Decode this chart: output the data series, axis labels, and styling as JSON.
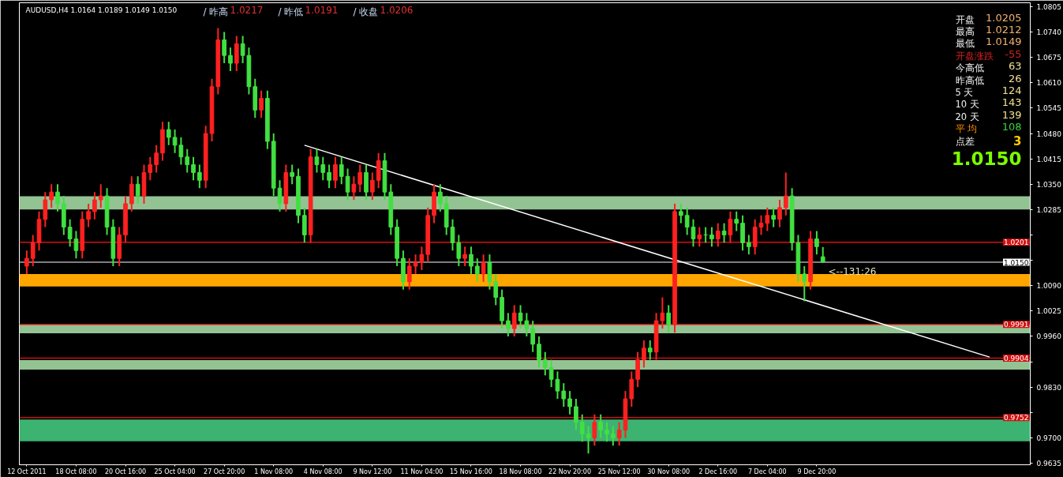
{
  "chart_data": {
    "type": "candlestick",
    "title": "AUDUSD,H4  1.0164 1.0189 1.0149 1.0150",
    "categories": [
      "12 Oct 2011",
      null,
      null,
      null,
      null,
      null,
      null,
      null,
      "18 Oct 08:00",
      null,
      null,
      null,
      null,
      null,
      null,
      null,
      "20 Oct 16:00",
      null,
      null,
      null,
      null,
      null,
      null,
      null,
      "25 Oct 04:00",
      null,
      null,
      null,
      null,
      null,
      null,
      null,
      "27 Oct 20:00",
      null,
      null,
      null,
      null,
      null,
      null,
      null,
      "1 Nov 08:00",
      null,
      null,
      null,
      null,
      null,
      null,
      null,
      "4 Nov 08:00",
      null,
      null,
      null,
      null,
      null,
      null,
      null,
      "9 Nov 12:00",
      null,
      null,
      null,
      null,
      null,
      null,
      null,
      "11 Nov 04:00",
      null,
      null,
      null,
      null,
      null,
      null,
      null,
      "15 Nov 16:00",
      null,
      null,
      null,
      null,
      null,
      null,
      null,
      "18 Nov 08:00",
      null,
      null,
      null,
      null,
      null,
      null,
      null,
      "22 Nov 20:00",
      null,
      null,
      null,
      null,
      null,
      null,
      null,
      "25 Nov 12:00",
      null,
      null,
      null,
      null,
      null,
      null,
      null,
      "30 Nov 08:00",
      null,
      null,
      null,
      null,
      null,
      null,
      null,
      "2 Dec 16:00",
      null,
      null,
      null,
      null,
      null,
      null,
      null,
      "7 Dec 04:00",
      null,
      null,
      null,
      null,
      null,
      null,
      null,
      "9 Dec 20:00",
      null,
      null,
      null,
      null,
      null,
      null,
      null,
      null,
      null,
      null,
      null,
      null,
      null,
      null,
      null,
      null,
      null,
      null,
      null,
      null,
      null,
      null,
      null,
      null,
      null,
      null,
      null,
      null,
      null,
      null,
      null,
      null,
      null,
      null
    ],
    "ohlc": [
      [
        1.014,
        1.018,
        1.012,
        1.016
      ],
      [
        1.016,
        1.022,
        1.014,
        1.02
      ],
      [
        1.02,
        1.028,
        1.018,
        1.026
      ],
      [
        1.026,
        1.033,
        1.024,
        1.031
      ],
      [
        1.031,
        1.035,
        1.029,
        1.033
      ],
      [
        1.033,
        1.035,
        1.028,
        1.03
      ],
      [
        1.03,
        1.032,
        1.022,
        1.024
      ],
      [
        1.024,
        1.026,
        1.019,
        1.021
      ],
      [
        1.021,
        1.023,
        1.016,
        1.018
      ],
      [
        1.018,
        1.028,
        1.016,
        1.026
      ],
      [
        1.026,
        1.03,
        1.024,
        1.028
      ],
      [
        1.028,
        1.033,
        1.026,
        1.031
      ],
      [
        1.031,
        1.035,
        1.029,
        1.032
      ],
      [
        1.032,
        1.034,
        1.022,
        1.024
      ],
      [
        1.024,
        1.026,
        1.014,
        1.016
      ],
      [
        1.016,
        1.024,
        1.014,
        1.022
      ],
      [
        1.022,
        1.032,
        1.02,
        1.03
      ],
      [
        1.03,
        1.037,
        1.028,
        1.035
      ],
      [
        1.035,
        1.037,
        1.03,
        1.032
      ],
      [
        1.032,
        1.04,
        1.03,
        1.038
      ],
      [
        1.038,
        1.042,
        1.036,
        1.04
      ],
      [
        1.04,
        1.045,
        1.038,
        1.043
      ],
      [
        1.043,
        1.051,
        1.041,
        1.049
      ],
      [
        1.049,
        1.051,
        1.045,
        1.047
      ],
      [
        1.047,
        1.049,
        1.043,
        1.045
      ],
      [
        1.045,
        1.047,
        1.04,
        1.042
      ],
      [
        1.042,
        1.044,
        1.038,
        1.04
      ],
      [
        1.04,
        1.042,
        1.036,
        1.038
      ],
      [
        1.038,
        1.04,
        1.034,
        1.036
      ],
      [
        1.036,
        1.05,
        1.034,
        1.048
      ],
      [
        1.048,
        1.062,
        1.046,
        1.06
      ],
      [
        1.06,
        1.075,
        1.058,
        1.072
      ],
      [
        1.072,
        1.074,
        1.066,
        1.068
      ],
      [
        1.068,
        1.07,
        1.064,
        1.066
      ],
      [
        1.066,
        1.073,
        1.064,
        1.071
      ],
      [
        1.071,
        1.073,
        1.066,
        1.068
      ],
      [
        1.068,
        1.07,
        1.058,
        1.06
      ],
      [
        1.06,
        1.062,
        1.052,
        1.054
      ],
      [
        1.054,
        1.059,
        1.052,
        1.057
      ],
      [
        1.057,
        1.059,
        1.044,
        1.046
      ],
      [
        1.046,
        1.048,
        1.032,
        1.034
      ],
      [
        1.034,
        1.036,
        1.028,
        1.03
      ],
      [
        1.03,
        1.04,
        1.028,
        1.038
      ],
      [
        1.038,
        1.04,
        1.035,
        1.037
      ],
      [
        1.037,
        1.039,
        1.025,
        1.027
      ],
      [
        1.027,
        1.029,
        1.02,
        1.022
      ],
      [
        1.022,
        1.044,
        1.02,
        1.042
      ],
      [
        1.042,
        1.044,
        1.038,
        1.04
      ],
      [
        1.04,
        1.042,
        1.036,
        1.038
      ],
      [
        1.038,
        1.04,
        1.034,
        1.036
      ],
      [
        1.036,
        1.042,
        1.034,
        1.04
      ],
      [
        1.04,
        1.042,
        1.035,
        1.037
      ],
      [
        1.037,
        1.039,
        1.031,
        1.033
      ],
      [
        1.033,
        1.037,
        1.031,
        1.035
      ],
      [
        1.035,
        1.04,
        1.033,
        1.038
      ],
      [
        1.038,
        1.04,
        1.031,
        1.033
      ],
      [
        1.033,
        1.038,
        1.031,
        1.036
      ],
      [
        1.036,
        1.043,
        1.034,
        1.041
      ],
      [
        1.041,
        1.043,
        1.031,
        1.033
      ],
      [
        1.033,
        1.035,
        1.022,
        1.024
      ],
      [
        1.024,
        1.026,
        1.014,
        1.016
      ],
      [
        1.016,
        1.018,
        1.008,
        1.01
      ],
      [
        1.01,
        1.016,
        1.008,
        1.014
      ],
      [
        1.014,
        1.017,
        1.012,
        1.015
      ],
      [
        1.015,
        1.019,
        1.013,
        1.017
      ],
      [
        1.017,
        1.029,
        1.015,
        1.027
      ],
      [
        1.027,
        1.035,
        1.025,
        1.033
      ],
      [
        1.033,
        1.035,
        1.028,
        1.03
      ],
      [
        1.03,
        1.032,
        1.022,
        1.024
      ],
      [
        1.024,
        1.026,
        1.018,
        1.02
      ],
      [
        1.02,
        1.022,
        1.014,
        1.016
      ],
      [
        1.016,
        1.019,
        1.014,
        1.017
      ],
      [
        1.017,
        1.019,
        1.012,
        1.014
      ],
      [
        1.014,
        1.016,
        1.01,
        1.012
      ],
      [
        1.012,
        1.017,
        1.01,
        1.015
      ],
      [
        1.015,
        1.017,
        1.008,
        1.01
      ],
      [
        1.01,
        1.012,
        1.004,
        1.006
      ],
      [
        1.006,
        1.008,
        0.998,
        1.0
      ],
      [
        1.0,
        1.002,
        0.996,
        0.998
      ],
      [
        0.998,
        1.004,
        0.996,
        1.002
      ],
      [
        1.002,
        1.004,
        0.998,
        1.0
      ],
      [
        1.0,
        1.002,
        0.996,
        0.998
      ],
      [
        0.998,
        1.0,
        0.992,
        0.994
      ],
      [
        0.994,
        0.996,
        0.988,
        0.99
      ],
      [
        0.99,
        0.992,
        0.986,
        0.988
      ],
      [
        0.988,
        0.99,
        0.983,
        0.985
      ],
      [
        0.985,
        0.987,
        0.98,
        0.982
      ],
      [
        0.982,
        0.984,
        0.978,
        0.98
      ],
      [
        0.98,
        0.982,
        0.976,
        0.978
      ],
      [
        0.978,
        0.98,
        0.972,
        0.974
      ],
      [
        0.974,
        0.976,
        0.969,
        0.971
      ],
      [
        0.971,
        0.973,
        0.966,
        0.97
      ],
      [
        0.97,
        0.976,
        0.968,
        0.974
      ],
      [
        0.974,
        0.976,
        0.97,
        0.972
      ],
      [
        0.972,
        0.974,
        0.969,
        0.971
      ],
      [
        0.971,
        0.973,
        0.968,
        0.97
      ],
      [
        0.97,
        0.974,
        0.968,
        0.972
      ],
      [
        0.972,
        0.982,
        0.97,
        0.98
      ],
      [
        0.98,
        0.987,
        0.978,
        0.985
      ],
      [
        0.985,
        0.992,
        0.983,
        0.99
      ],
      [
        0.99,
        0.995,
        0.988,
        0.993
      ],
      [
        0.993,
        0.995,
        0.99,
        0.992
      ],
      [
        0.992,
        1.002,
        0.99,
        1.0
      ],
      [
        1.0,
        1.006,
        0.998,
        1.002
      ],
      [
        1.002,
        1.004,
        0.997,
        0.999
      ],
      [
        0.999,
        1.03,
        0.997,
        1.028
      ],
      [
        1.028,
        1.03,
        1.025,
        1.027
      ],
      [
        1.027,
        1.029,
        1.022,
        1.024
      ],
      [
        1.024,
        1.026,
        1.019,
        1.021
      ],
      [
        1.021,
        1.024,
        1.019,
        1.022
      ],
      [
        1.022,
        1.024,
        1.02,
        1.022
      ],
      [
        1.022,
        1.024,
        1.019,
        1.021
      ],
      [
        1.021,
        1.025,
        1.019,
        1.023
      ],
      [
        1.023,
        1.025,
        1.02,
        1.022
      ],
      [
        1.022,
        1.028,
        1.02,
        1.026
      ],
      [
        1.026,
        1.028,
        1.023,
        1.025
      ],
      [
        1.025,
        1.027,
        1.018,
        1.02
      ],
      [
        1.02,
        1.022,
        1.017,
        1.019
      ],
      [
        1.019,
        1.026,
        1.017,
        1.024
      ],
      [
        1.024,
        1.027,
        1.022,
        1.025
      ],
      [
        1.025,
        1.029,
        1.023,
        1.027
      ],
      [
        1.027,
        1.029,
        1.024,
        1.026
      ],
      [
        1.026,
        1.031,
        1.024,
        1.029
      ],
      [
        1.029,
        1.038,
        1.027,
        1.032
      ],
      [
        1.032,
        1.034,
        1.018,
        1.02
      ],
      [
        1.02,
        1.022,
        1.01,
        1.012
      ],
      [
        1.012,
        1.014,
        1.005,
        1.01
      ],
      [
        1.01,
        1.023,
        1.008,
        1.021
      ],
      [
        1.021,
        1.023,
        1.017,
        1.019
      ],
      [
        1.0164,
        1.0189,
        1.0149,
        1.015
      ],
      null,
      null,
      null,
      null,
      null,
      null,
      null,
      null,
      null,
      null,
      null,
      null,
      null,
      null,
      null,
      null,
      null,
      null,
      null,
      null,
      null,
      null,
      null,
      null,
      null,
      null,
      null,
      null,
      null,
      null,
      null,
      null,
      null
    ],
    "colors": [
      "#ff2020",
      "#ff2020",
      "#ff2020",
      "#ff2020",
      "#ff2020",
      "#40e040",
      "#40e040",
      "#40e040",
      "#40e040",
      "#ff2020",
      "#ff2020",
      "#ff2020",
      "#ff2020",
      "#40e040",
      "#40e040",
      "#ff2020",
      "#ff2020",
      "#ff2020",
      "#40e040",
      "#ff2020",
      "#ff2020",
      "#ff2020",
      "#ff2020",
      "#40e040",
      "#40e040",
      "#40e040",
      "#40e040",
      "#40e040",
      "#40e040",
      "#ff2020",
      "#ff2020",
      "#ff2020",
      "#40e040",
      "#40e040",
      "#ff2020",
      "#40e040",
      "#40e040",
      "#40e040",
      "#ff2020",
      "#40e040",
      "#40e040",
      "#40e040",
      "#ff2020",
      "#40e040",
      "#40e040",
      "#40e040",
      "#ff2020",
      "#40e040",
      "#40e040",
      "#40e040",
      "#ff2020",
      "#40e040",
      "#40e040",
      "#ff2020",
      "#ff2020",
      "#40e040",
      "#ff2020",
      "#ff2020",
      "#40e040",
      "#40e040",
      "#40e040",
      "#40e040",
      "#ff2020",
      "#ff2020",
      "#ff2020",
      "#ff2020",
      "#ff2020",
      "#40e040",
      "#40e040",
      "#40e040",
      "#40e040",
      "#ff2020",
      "#40e040",
      "#40e040",
      "#ff2020",
      "#40e040",
      "#40e040",
      "#40e040",
      "#40e040",
      "#ff2020",
      "#40e040",
      "#40e040",
      "#40e040",
      "#40e040",
      "#40e040",
      "#40e040",
      "#40e040",
      "#40e040",
      "#40e040",
      "#40e040",
      "#40e040",
      "#40e040",
      "#ff2020",
      "#40e040",
      "#40e040",
      "#40e040",
      "#ff2020",
      "#ff2020",
      "#ff2020",
      "#ff2020",
      "#ff2020",
      "#40e040",
      "#ff2020",
      "#ff2020",
      "#40e040",
      "#ff2020",
      "#40e040",
      "#40e040",
      "#40e040",
      "#ff2020",
      "#40e040",
      "#40e040",
      "#ff2020",
      "#40e040",
      "#ff2020",
      "#40e040",
      "#40e040",
      "#40e040",
      "#ff2020",
      "#ff2020",
      "#ff2020",
      "#40e040",
      "#ff2020",
      "#ff2020",
      "#40e040",
      "#40e040",
      "#40e040",
      "#ff2020",
      "#40e040",
      "#40e040",
      null,
      null,
      null,
      null,
      null,
      null,
      null,
      null,
      null,
      null,
      null,
      null,
      null,
      null,
      null,
      null,
      null,
      null,
      null,
      null,
      null,
      null,
      null,
      null,
      null,
      null,
      null,
      null,
      null,
      null,
      null,
      null,
      null
    ],
    "series": [
      {
        "type": "line",
        "color": "#ffffff",
        "values": [
          null,
          null,
          null,
          null,
          null,
          null,
          null,
          null,
          null,
          null,
          null,
          null,
          null,
          null,
          null,
          null,
          null,
          null,
          null,
          null,
          null,
          null,
          null,
          null,
          null,
          null,
          null,
          null,
          null,
          null,
          null,
          null,
          null,
          null,
          null,
          null,
          null,
          null,
          null,
          null,
          null,
          null,
          null,
          null,
          null,
          1.045,
          null,
          null,
          null,
          null,
          null,
          null,
          null,
          null,
          null,
          null,
          null,
          null,
          null,
          null,
          null,
          null,
          null,
          null,
          null,
          null,
          null,
          null,
          null,
          null,
          null,
          null,
          null,
          null,
          null,
          null,
          null,
          null,
          null,
          null,
          null,
          null,
          null,
          null,
          null,
          null,
          null,
          null,
          null,
          null,
          null,
          null,
          null,
          null,
          null,
          null,
          null,
          null,
          null,
          null,
          null,
          null,
          null,
          null,
          null,
          null,
          null,
          null,
          null,
          null,
          null,
          null,
          null,
          null,
          null,
          null,
          null,
          null,
          null,
          null,
          null,
          null,
          null,
          null,
          null,
          null,
          null,
          null,
          null,
          null,
          null,
          null,
          null,
          null,
          null,
          null,
          null,
          null,
          null,
          null,
          null,
          null,
          null,
          null,
          null,
          null,
          null,
          null,
          null,
          null,
          null,
          null,
          null,
          null,
          null,
          null,
          0.9907,
          null,
          null,
          null,
          null,
          null,
          null
        ]
      }
    ],
    "ylim": [
      0.9631,
      1.0815
    ],
    "yticks": [
      1.0805,
      {
        "value": 1.074,
        "label": "1.0740"
      },
      1.0675,
      {
        "value": 1.061,
        "label": "1.0610"
      },
      1.0545,
      {
        "value": 1.048,
        "label": "1.0480"
      },
      1.0415,
      {
        "value": 1.035,
        "label": "1.0350"
      },
      1.0285,
      {
        "value": 1.022,
        "label": null
      },
      {
        "value": 1.0155,
        "label": null
      },
      {
        "value": 1.009,
        "label": "1.0090"
      },
      1.0025,
      {
        "value": 0.996,
        "label": "0.9960"
      },
      {
        "value": 0.9895,
        "label": null
      },
      {
        "value": 0.983,
        "label": "0.9830"
      },
      {
        "value": 0.9765,
        "label": null
      },
      {
        "value": 0.97,
        "label": "0.9700"
      },
      0.9635
    ],
    "ref_lines": [
      {
        "axis": "y",
        "value": 1.0201,
        "label": "1.0201",
        "color": "#d01010"
      },
      {
        "axis": "y",
        "value": 1.015,
        "label": "1.0150",
        "color": "#a8a8b0"
      },
      {
        "axis": "y",
        "value": 0.9991,
        "label": "0.9991",
        "color": "#d01010"
      },
      {
        "axis": "y",
        "value": 0.9904,
        "label": "0.9904",
        "color": "#d01010"
      },
      {
        "axis": "y",
        "value": 0.9752,
        "label": "0.9752",
        "color": "#d01010"
      }
    ],
    "bands": [
      {
        "axis": "y",
        "from": 1.0285,
        "to": 1.0319,
        "color": "#93c393"
      },
      {
        "axis": "y",
        "from": 1.0088,
        "to": 1.012,
        "color": "#ffa500"
      },
      {
        "axis": "y",
        "from": 0.9968,
        "to": 0.999,
        "color": "#93c393"
      },
      {
        "axis": "y",
        "from": 0.9875,
        "to": 0.9899,
        "color": "#93c393"
      },
      {
        "axis": "y",
        "from": 0.9691,
        "to": 0.9747,
        "color": "#3cb371"
      }
    ],
    "annotations": [
      "/ 昨高 1.0217",
      "/ 昨低 1.0191",
      "/ 收盘 1.0206",
      "开盘 1.0205",
      "最高 1.0212",
      "最低 1.0149",
      "开盘涨跌 -55",
      "今高低 63",
      "昨高低 26",
      "5 天 124",
      "10 天 143",
      "20 天 139",
      "平 均 108",
      "点差 3",
      "1.0150",
      "<--131:26"
    ],
    "grid": false
  }
}
